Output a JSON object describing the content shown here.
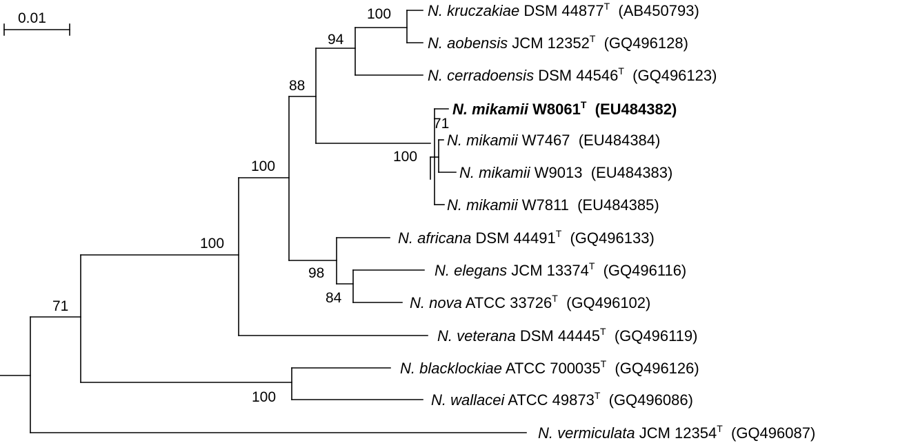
{
  "scale_bar": {
    "label": "0.01"
  },
  "taxa": [
    {
      "id": "kruczakiae",
      "genus": "N.",
      "species": "kruczakiae",
      "strain": "DSM 44877",
      "type_strain": "T",
      "accession": "(AB450793)",
      "bold": false
    },
    {
      "id": "aobensis",
      "genus": "N.",
      "species": "aobensis",
      "strain": "JCM 12352",
      "type_strain": "T",
      "accession": "(GQ496128)",
      "bold": false
    },
    {
      "id": "cerradoensis",
      "genus": "N.",
      "species": "cerradoensis",
      "strain": "DSM 44546",
      "type_strain": "T",
      "accession": "(GQ496123)",
      "bold": false
    },
    {
      "id": "mikamii-w8061",
      "genus": "N.",
      "species": "mikamii",
      "strain": "W8061",
      "type_strain": "T",
      "accession": "(EU484382)",
      "bold": true
    },
    {
      "id": "mikamii-w7467",
      "genus": "N.",
      "species": "mikamii",
      "strain": "W7467",
      "type_strain": "",
      "accession": "(EU484384)",
      "bold": false
    },
    {
      "id": "mikamii-w9013",
      "genus": "N.",
      "species": "mikamii",
      "strain": "W9013",
      "type_strain": "",
      "accession": "(EU484383)",
      "bold": false
    },
    {
      "id": "mikamii-w7811",
      "genus": "N.",
      "species": "mikamii",
      "strain": "W7811",
      "type_strain": "",
      "accession": "(EU484385)",
      "bold": false
    },
    {
      "id": "africana",
      "genus": "N.",
      "species": "africana",
      "strain": "DSM 44491",
      "type_strain": "T",
      "accession": "(GQ496133)",
      "bold": false
    },
    {
      "id": "elegans",
      "genus": "N.",
      "species": "elegans",
      "strain": "JCM 13374",
      "type_strain": "T",
      "accession": "(GQ496116)",
      "bold": false
    },
    {
      "id": "nova",
      "genus": "N.",
      "species": "nova",
      "strain": "ATCC 33726",
      "type_strain": "T",
      "accession": "(GQ496102)",
      "bold": false
    },
    {
      "id": "veterana",
      "genus": "N.",
      "species": "veterana",
      "strain": "DSM 44445",
      "type_strain": "T",
      "accession": "(GQ496119)",
      "bold": false
    },
    {
      "id": "blacklockiae",
      "genus": "N.",
      "species": "blacklockiae",
      "strain": "ATCC 700035",
      "type_strain": "T",
      "accession": "(GQ496126)",
      "bold": false
    },
    {
      "id": "wallacei",
      "genus": "N.",
      "species": "wallacei",
      "strain": "ATCC 49873",
      "type_strain": "T",
      "accession": "(GQ496086)",
      "bold": false
    },
    {
      "id": "vermiculata",
      "genus": "N.",
      "species": "vermiculata",
      "strain": "JCM 12354",
      "type_strain": "T",
      "accession": "(GQ496087)",
      "bold": false
    }
  ],
  "bootstrap": [
    {
      "id": "kruczakiae-aobensis",
      "value": "100"
    },
    {
      "id": "kruczakiae-aobensis-cerradoensis",
      "value": "94"
    },
    {
      "id": "cerradoensis-mikamii",
      "value": "88"
    },
    {
      "id": "mikamii-inner",
      "value": "71"
    },
    {
      "id": "mikamii-clade",
      "value": "100"
    },
    {
      "id": "main-clade",
      "value": "100"
    },
    {
      "id": "veterana-clade",
      "value": "100"
    },
    {
      "id": "africana-elegans-nova",
      "value": "98"
    },
    {
      "id": "elegans-nova",
      "value": "84"
    },
    {
      "id": "root-inner",
      "value": "71"
    },
    {
      "id": "blacklockiae-wallacei",
      "value": "100"
    }
  ]
}
